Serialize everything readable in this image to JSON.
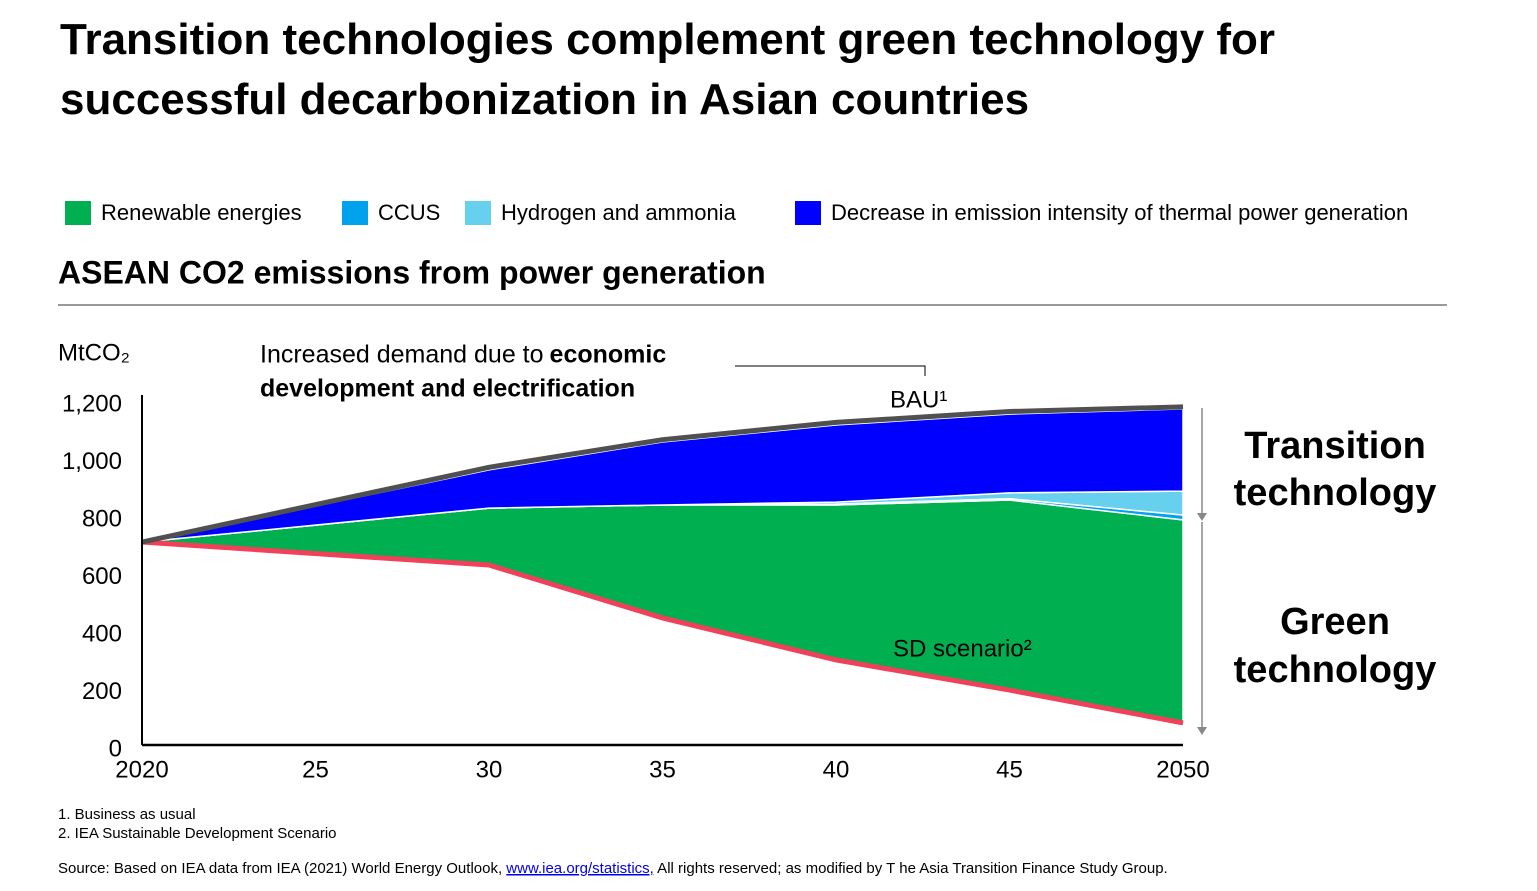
{
  "chart_data": {
    "type": "stacked_area",
    "title": "Transition technologies complement green technology for successful decarbonization in Asian countries",
    "subtitle": "ASEAN CO2 emissions from power generation",
    "y_label": "MtCO₂",
    "annotation_plain": "Increased demand due to ",
    "annotation_bold": "economic development and electrification",
    "right_label_top": "Transition technology",
    "right_label_bottom": "Green technology",
    "x": [
      2020,
      2030,
      2035,
      2040,
      2045,
      2050
    ],
    "xlim": [
      2020,
      2050
    ],
    "xticks": [
      2020,
      {
        "value": 2025,
        "label": "25"
      },
      {
        "value": 2030,
        "label": "30"
      },
      {
        "value": 2035,
        "label": "35"
      },
      {
        "value": 2040,
        "label": "40"
      },
      {
        "value": 2045,
        "label": "45"
      },
      2050
    ],
    "ylim": [
      0,
      1200
    ],
    "yticks": [
      0,
      200,
      400,
      600,
      800,
      {
        "value": 1000,
        "label": "1,000"
      },
      {
        "value": 1200,
        "label": "1,200"
      }
    ],
    "grid": false,
    "base_line": {
      "name": "SD scenario²",
      "color": "#f0405a",
      "values": [
        706,
        626,
        442,
        296,
        191,
        77
      ]
    },
    "top_line": {
      "name": "BAU¹",
      "color": "#505050",
      "values": [
        706,
        966,
        1062,
        1122,
        1160,
        1176
      ]
    },
    "series": [
      {
        "name": "Renewable energies",
        "color": "#00b050",
        "values": [
          0,
          198,
          393,
          539,
          661,
          706
        ]
      },
      {
        "name": "CCUS",
        "color": "#00a2ed",
        "values": [
          0,
          0,
          0,
          3,
          5,
          17
        ]
      },
      {
        "name": "Hydrogen and ammonia",
        "color": "#66d0ee",
        "values": [
          0,
          0,
          0,
          7,
          20,
          83
        ]
      },
      {
        "name": "Decrease in emission intensity of thermal power generation",
        "color": "#0000ff",
        "values": [
          0,
          133,
          219,
          268,
          274,
          286
        ]
      }
    ],
    "footnotes": [
      "1.   Business as usual",
      "2.   IEA Sustainable Development Scenario"
    ],
    "source_before": "Source: Based on IEA data from IEA (2021) World Energy Outlook, ",
    "source_link": "www.iea.org/statistics,",
    "source_after": " All rights reserved; as modified by T  he Asia Transition Finance Study Group."
  }
}
